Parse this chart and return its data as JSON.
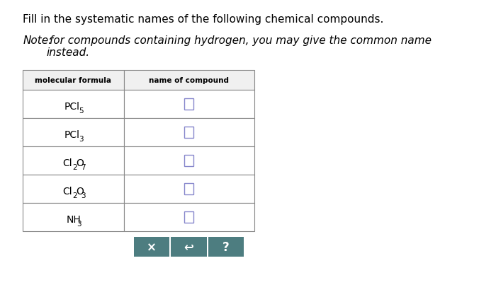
{
  "title": "Fill in the systematic names of the following chemical compounds.",
  "note_italic": "Note:",
  "note_rest": " for compounds containing hydrogen, you may give the common name\ninstead.",
  "col1_header": "molecular formula",
  "col2_header": "name of compound",
  "formulas": [
    {
      "parts": [
        {
          "text": "PCl",
          "sub": false
        },
        {
          "text": "5",
          "sub": true
        }
      ]
    },
    {
      "parts": [
        {
          "text": "PCl",
          "sub": false
        },
        {
          "text": "3",
          "sub": true
        }
      ]
    },
    {
      "parts": [
        {
          "text": "Cl",
          "sub": false
        },
        {
          "text": "2",
          "sub": true
        },
        {
          "text": "O",
          "sub": false
        },
        {
          "text": "7",
          "sub": true
        }
      ]
    },
    {
      "parts": [
        {
          "text": "Cl",
          "sub": false
        },
        {
          "text": "2",
          "sub": true
        },
        {
          "text": "O",
          "sub": false
        },
        {
          "text": "3",
          "sub": true
        }
      ]
    },
    {
      "parts": [
        {
          "text": "NH",
          "sub": false
        },
        {
          "text": "3",
          "sub": true
        }
      ]
    }
  ],
  "background": "#ffffff",
  "table_border_color": "#888888",
  "header_bg": "#f0f0f0",
  "cell_bg": "#ffffff",
  "button_bg": "#4d7d80",
  "button_color": "#ffffff",
  "input_box_color": "#8888cc"
}
